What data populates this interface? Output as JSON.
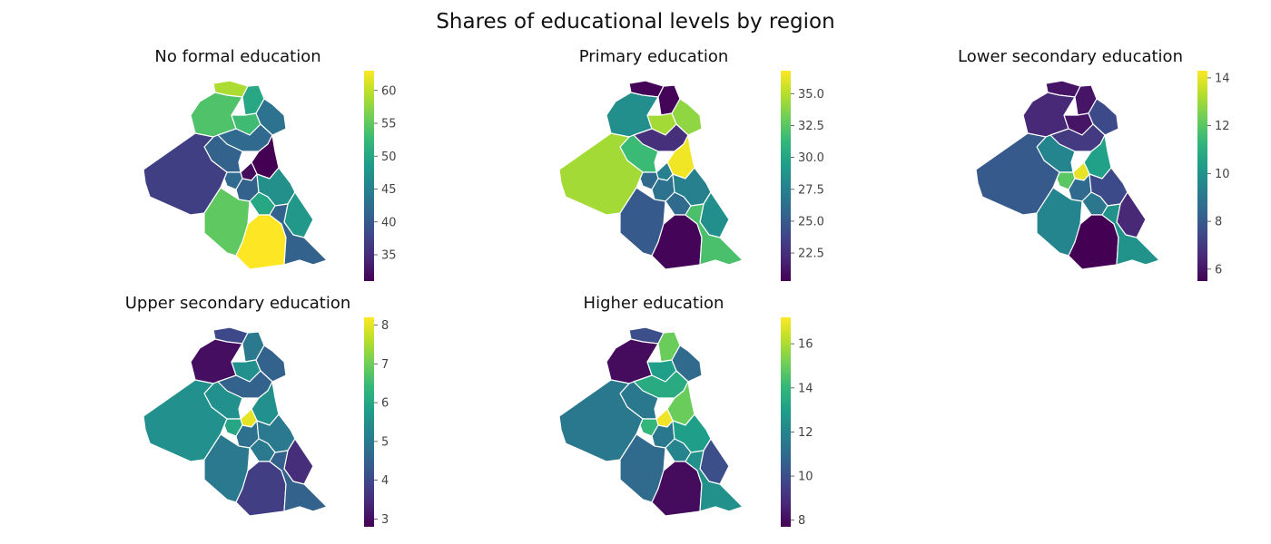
{
  "title": "Shares of educational levels by region",
  "colormap": [
    "#440154",
    "#482878",
    "#3e4989",
    "#31688e",
    "#26828e",
    "#1f9e89",
    "#35b779",
    "#6ece58",
    "#b5de2b",
    "#fde725"
  ],
  "region_edge_color": "#ffffff",
  "chart_data": [
    {
      "type": "choropleth",
      "title": "No formal education",
      "colorbar_range": [
        31,
        63
      ],
      "colorbar_ticks": [
        "35",
        "40",
        "45",
        "50",
        "55",
        "60"
      ],
      "colorbar_tick_values": [
        35,
        40,
        45,
        50,
        55,
        60
      ],
      "region_values": [
        59,
        54,
        50,
        53,
        43,
        42,
        41,
        31,
        32,
        42,
        37,
        41,
        47,
        50,
        48,
        55,
        63,
        41
      ]
    },
    {
      "type": "choropleth",
      "title": "Primary education",
      "colorbar_range": [
        20.3,
        36.8
      ],
      "colorbar_ticks": [
        "22.5",
        "25.0",
        "27.5",
        "30.0",
        "32.5",
        "35.0"
      ],
      "colorbar_tick_values": [
        22.5,
        25.0,
        27.5,
        30.0,
        32.5,
        35.0
      ],
      "region_values": [
        20.5,
        28.5,
        20.5,
        34.5,
        34.0,
        22.5,
        31.5,
        36.5,
        27.5,
        26.0,
        34.5,
        26.5,
        27.5,
        26.0,
        28.5,
        25.0,
        20.5,
        32.0
      ]
    },
    {
      "type": "choropleth",
      "title": "Lower secondary education",
      "colorbar_range": [
        5.5,
        14.3
      ],
      "colorbar_ticks": [
        "6",
        "8",
        "10",
        "12",
        "14"
      ],
      "colorbar_tick_values": [
        6,
        8,
        10,
        12,
        14
      ],
      "region_values": [
        6.0,
        6.5,
        6.0,
        6.0,
        7.5,
        7.0,
        9.5,
        10.5,
        14.0,
        12.0,
        8.0,
        8.5,
        7.5,
        9.0,
        6.5,
        9.5,
        5.5,
        10.0
      ]
    },
    {
      "type": "choropleth",
      "title": "Upper secondary education",
      "colorbar_range": [
        2.8,
        8.2
      ],
      "colorbar_ticks": [
        "3",
        "4",
        "5",
        "6",
        "7"
      ],
      "colorbar_tick_values": [
        3,
        4,
        5,
        6,
        7
      ],
      "region_values": [
        4.0,
        3.0,
        5.0,
        5.5,
        4.5,
        4.5,
        5.5,
        5.5,
        8.0,
        6.0,
        5.5,
        4.8,
        5.0,
        5.0,
        3.5,
        5.0,
        3.8,
        4.5
      ],
      "colorbar_ticks_extra": [
        "8"
      ]
    },
    {
      "type": "choropleth",
      "title": "Higher education",
      "colorbar_range": [
        7.7,
        17.2
      ],
      "colorbar_ticks": [
        "8",
        "10",
        "12",
        "14",
        "16"
      ],
      "colorbar_tick_values": [
        8,
        10,
        12,
        14,
        16
      ],
      "region_values": [
        10.0,
        8.0,
        15.0,
        13.0,
        11.0,
        13.5,
        11.5,
        15.0,
        17.0,
        14.0,
        11.5,
        11.5,
        13.0,
        12.0,
        10.0,
        11.0,
        8.0,
        12.5
      ]
    }
  ]
}
